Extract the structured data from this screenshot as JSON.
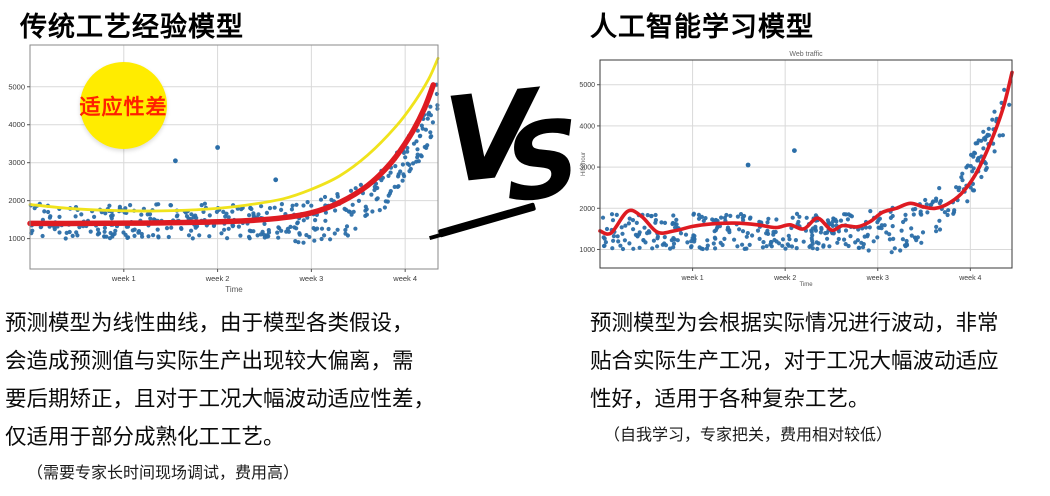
{
  "left": {
    "title": "传统工艺经验模型",
    "badge": {
      "label": "适应性差",
      "bg": "#ffec00",
      "text_color": "#ff2000"
    },
    "paragraph_lines": [
      "预测模型为线性曲线，由于模型各类假设，",
      "会造成预测值与实际生产出现较大偏离，需",
      "要后期矫正，且对于工况大幅波动适应性差，",
      "仅适用于部分成熟化工工艺。"
    ],
    "note": "（需要专家长时间现场调试，费用高）"
  },
  "vs": {
    "label_v": "V",
    "label_s": "S"
  },
  "right": {
    "title": "人工智能学习模型",
    "paragraph_lines": [
      "预测模型为会根据实际情况进行波动，非常",
      "贴合实际生产工况，对于工况大幅波动适应",
      "性好，适用于各种复杂工艺。"
    ],
    "note": "（自我学习，专家把关，费用相对较低）"
  },
  "chart_data": [
    {
      "id": "traditional-model-chart",
      "type": "scatter",
      "title": "",
      "xlabel": "Time",
      "ylabel": "",
      "x_ticks": [
        {
          "v": 1,
          "label": "week 1"
        },
        {
          "v": 2,
          "label": "week 2"
        },
        {
          "v": 3,
          "label": "week 3"
        },
        {
          "v": 4,
          "label": "week 4"
        }
      ],
      "y_ticks": [
        1000,
        2000,
        3000,
        4000,
        5000
      ],
      "x_range": [
        0,
        4.35
      ],
      "y_range": [
        200,
        6100
      ],
      "grid": true,
      "scatter": {
        "n": 400,
        "seed": 13,
        "base": 1460,
        "jitter": 460,
        "rise_start": 2.8,
        "rise_amp": 3200,
        "rise_pow": 2.8,
        "point_radius": 2.1,
        "color": "#2b6ea8"
      },
      "outliers": [
        [
          1.55,
          3050
        ],
        [
          2.0,
          3400
        ],
        [
          2.62,
          2550
        ]
      ],
      "lines": [
        {
          "name": "curved-fit-yellow",
          "color": "#f0e31c",
          "width": 2.8,
          "points": [
            [
              0,
              1900
            ],
            [
              0.4,
              1800
            ],
            [
              0.9,
              1740
            ],
            [
              1.4,
              1730
            ],
            [
              1.9,
              1780
            ],
            [
              2.3,
              1880
            ],
            [
              2.7,
              2050
            ],
            [
              3.0,
              2300
            ],
            [
              3.3,
              2650
            ],
            [
              3.6,
              3200
            ],
            [
              3.9,
              3950
            ],
            [
              4.1,
              4600
            ],
            [
              4.25,
              5200
            ],
            [
              4.35,
              5750
            ]
          ]
        },
        {
          "name": "linear-model-red",
          "color": "#de1b22",
          "width": 5.5,
          "points": [
            [
              0,
              1400
            ],
            [
              0.6,
              1400
            ],
            [
              1.2,
              1410
            ],
            [
              1.8,
              1430
            ],
            [
              2.3,
              1470
            ],
            [
              2.7,
              1550
            ],
            [
              3.0,
              1680
            ],
            [
              3.3,
              1950
            ],
            [
              3.6,
              2400
            ],
            [
              3.85,
              3000
            ],
            [
              4.05,
              3700
            ],
            [
              4.2,
              4400
            ],
            [
              4.3,
              5050
            ]
          ]
        }
      ]
    },
    {
      "id": "ai-model-chart",
      "type": "scatter",
      "title": "Web traffic",
      "xlabel": "Time",
      "ylabel": "Hits/hour",
      "x_ticks": [
        {
          "v": 1,
          "label": "week 1"
        },
        {
          "v": 2,
          "label": "week 2"
        },
        {
          "v": 3,
          "label": "week 3"
        },
        {
          "v": 4,
          "label": "week 4"
        }
      ],
      "y_ticks": [
        1000,
        2000,
        3000,
        4000,
        5000
      ],
      "x_range": [
        0,
        4.45
      ],
      "y_range": [
        550,
        5600
      ],
      "grid": true,
      "scatter": {
        "n": 420,
        "seed": 29,
        "base": 1440,
        "jitter": 430,
        "rise_start": 2.9,
        "rise_amp": 3400,
        "rise_pow": 2.6,
        "point_radius": 2.1,
        "color": "#2b6ea8"
      },
      "outliers": [
        [
          1.6,
          3050
        ],
        [
          2.1,
          3400
        ]
      ],
      "lines": [
        {
          "name": "adaptive-model-red",
          "color": "#de1b22",
          "width": 3.6,
          "points": [
            [
              0,
              1450
            ],
            [
              0.12,
              1400
            ],
            [
              0.3,
              1930
            ],
            [
              0.45,
              1800
            ],
            [
              0.62,
              1420
            ],
            [
              0.8,
              1450
            ],
            [
              1.0,
              1560
            ],
            [
              1.2,
              1620
            ],
            [
              1.45,
              1640
            ],
            [
              1.7,
              1600
            ],
            [
              1.9,
              1530
            ],
            [
              2.05,
              1600
            ],
            [
              2.2,
              1500
            ],
            [
              2.35,
              1760
            ],
            [
              2.5,
              1470
            ],
            [
              2.62,
              1580
            ],
            [
              2.78,
              1550
            ],
            [
              2.92,
              1680
            ],
            [
              3.05,
              1900
            ],
            [
              3.2,
              2000
            ],
            [
              3.35,
              2120
            ],
            [
              3.5,
              2030
            ],
            [
              3.62,
              2000
            ],
            [
              3.75,
              2100
            ],
            [
              3.9,
              2350
            ],
            [
              4.05,
              2800
            ],
            [
              4.2,
              3500
            ],
            [
              4.35,
              4400
            ],
            [
              4.45,
              5300
            ]
          ]
        }
      ]
    }
  ]
}
